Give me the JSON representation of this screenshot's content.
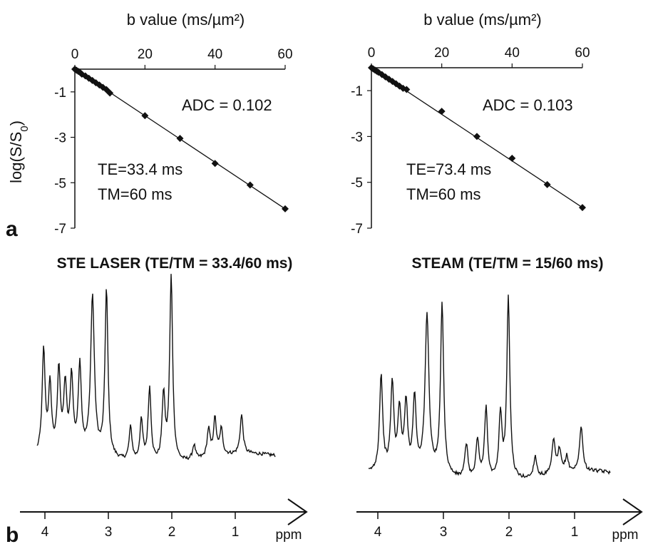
{
  "panel_labels": {
    "a": "a",
    "b": "b"
  },
  "chart_data": [
    {
      "type": "scatter",
      "panel": "a",
      "xlabel": "b value (ms/µm²)",
      "ylabel": "log(S/S0)",
      "xlim": [
        0,
        60
      ],
      "ylim": [
        -7,
        0
      ],
      "xticks": [
        "0",
        "20",
        "40",
        "60"
      ],
      "yticks": [
        "-1",
        "-3",
        "-5",
        "-7"
      ],
      "x_axis_position": "top",
      "grid": false,
      "annotations": [
        "ADC = 0.102",
        "TE=33.4 ms",
        "TM=60 ms"
      ],
      "series": [
        {
          "x": [
            0,
            0.5,
            1,
            1.5,
            2,
            3,
            4,
            5,
            6,
            7,
            8,
            9,
            10,
            20,
            30,
            40,
            50,
            60
          ],
          "y": [
            0,
            -0.05,
            -0.1,
            -0.15,
            -0.22,
            -0.3,
            -0.4,
            -0.5,
            -0.6,
            -0.7,
            -0.8,
            -0.9,
            -1.05,
            -2.05,
            -3.05,
            -4.15,
            -5.1,
            -6.15
          ],
          "fit_line": {
            "x": [
              0,
              60
            ],
            "y": [
              0,
              -6.15
            ]
          }
        }
      ]
    },
    {
      "type": "scatter",
      "panel": "a",
      "xlabel": "b value (ms/µm²)",
      "ylabel": "",
      "xlim": [
        0,
        60
      ],
      "ylim": [
        -7,
        0
      ],
      "xticks": [
        "0",
        "20",
        "40",
        "60"
      ],
      "yticks": [
        "-1",
        "-3",
        "-5",
        "-7"
      ],
      "x_axis_position": "top",
      "grid": false,
      "annotations": [
        "ADC = 0.103",
        "TE=73.4 ms",
        "TM=60 ms"
      ],
      "series": [
        {
          "x": [
            0,
            0.5,
            1,
            1.5,
            2,
            3,
            4,
            5,
            6,
            7,
            8,
            9,
            10,
            20,
            30,
            40,
            50,
            60
          ],
          "y": [
            0,
            -0.05,
            -0.1,
            -0.15,
            -0.2,
            -0.3,
            -0.4,
            -0.5,
            -0.6,
            -0.7,
            -0.8,
            -0.9,
            -0.95,
            -1.9,
            -3.0,
            -3.95,
            -5.1,
            -6.1
          ],
          "fit_line": {
            "x": [
              0,
              60
            ],
            "y": [
              0,
              -6.1
            ]
          }
        }
      ]
    },
    {
      "type": "line",
      "panel": "b",
      "title": "STE LASER (TE/TM = 33.4/60 ms)",
      "xlabel": "ppm",
      "xticks": [
        "4",
        "3",
        "2",
        "1"
      ],
      "x_reversed": true,
      "xlim": [
        4.3,
        0.3
      ],
      "peaks": [
        {
          "ppm": 4.02,
          "height": 0.55
        },
        {
          "ppm": 3.92,
          "height": 0.35
        },
        {
          "ppm": 3.78,
          "height": 0.44
        },
        {
          "ppm": 3.68,
          "height": 0.35
        },
        {
          "ppm": 3.58,
          "height": 0.4
        },
        {
          "ppm": 3.45,
          "height": 0.47
        },
        {
          "ppm": 3.25,
          "height": 0.85
        },
        {
          "ppm": 3.03,
          "height": 0.9
        },
        {
          "ppm": 2.65,
          "height": 0.18
        },
        {
          "ppm": 2.48,
          "height": 0.22
        },
        {
          "ppm": 2.35,
          "height": 0.4
        },
        {
          "ppm": 2.13,
          "height": 0.36
        },
        {
          "ppm": 2.01,
          "height": 1.0
        },
        {
          "ppm": 1.65,
          "height": 0.08
        },
        {
          "ppm": 1.42,
          "height": 0.15
        },
        {
          "ppm": 1.32,
          "height": 0.2
        },
        {
          "ppm": 1.22,
          "height": 0.14
        },
        {
          "ppm": 0.9,
          "height": 0.21
        }
      ]
    },
    {
      "type": "line",
      "panel": "b",
      "title": "STEAM (TE/TM = 15/60 ms)",
      "xlabel": "ppm",
      "xticks": [
        "4",
        "3",
        "2",
        "1"
      ],
      "x_reversed": true,
      "xlim": [
        4.3,
        0.3
      ],
      "peaks": [
        {
          "ppm": 3.95,
          "height": 0.5
        },
        {
          "ppm": 3.78,
          "height": 0.45
        },
        {
          "ppm": 3.67,
          "height": 0.31
        },
        {
          "ppm": 3.57,
          "height": 0.35
        },
        {
          "ppm": 3.44,
          "height": 0.38
        },
        {
          "ppm": 3.25,
          "height": 0.82
        },
        {
          "ppm": 3.02,
          "height": 0.9
        },
        {
          "ppm": 2.65,
          "height": 0.18
        },
        {
          "ppm": 2.48,
          "height": 0.21
        },
        {
          "ppm": 2.35,
          "height": 0.38
        },
        {
          "ppm": 2.13,
          "height": 0.34
        },
        {
          "ppm": 2.01,
          "height": 0.95
        },
        {
          "ppm": 1.6,
          "height": 0.11
        },
        {
          "ppm": 1.32,
          "height": 0.18
        },
        {
          "ppm": 1.23,
          "height": 0.12
        },
        {
          "ppm": 1.12,
          "height": 0.08
        },
        {
          "ppm": 0.9,
          "height": 0.24
        }
      ]
    }
  ]
}
